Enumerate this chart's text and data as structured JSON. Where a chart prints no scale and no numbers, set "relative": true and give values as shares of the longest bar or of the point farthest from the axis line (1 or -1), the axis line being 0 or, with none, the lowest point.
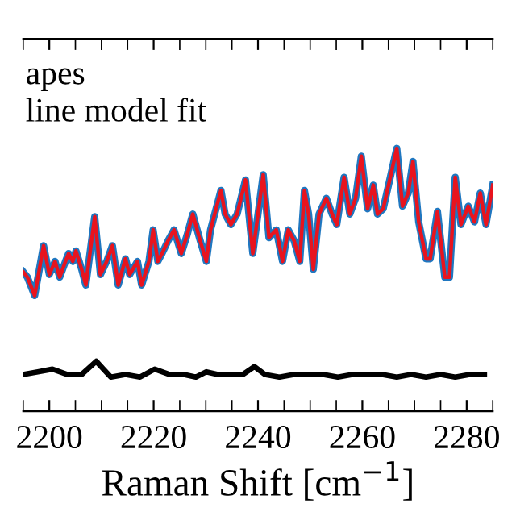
{
  "chart_data": {
    "type": "line",
    "relative": true,
    "xlabel": "Raman Shift [cm$^{−1}$]",
    "annotations": [
      "apes",
      "line model fit"
    ],
    "xlim": [
      2195,
      2285
    ],
    "xticks": [
      {
        "value": 2195,
        "label": null
      },
      2200,
      {
        "value": 2205,
        "label": null
      },
      {
        "value": 2210,
        "label": null
      },
      {
        "value": 2215,
        "label": null
      },
      2220,
      {
        "value": 2225,
        "label": null
      },
      {
        "value": 2230,
        "label": null
      },
      {
        "value": 2235,
        "label": null
      },
      2240,
      {
        "value": 2245,
        "label": null
      },
      {
        "value": 2250,
        "label": null
      },
      {
        "value": 2255,
        "label": null
      },
      2260,
      {
        "value": 2265,
        "label": null
      },
      {
        "value": 2270,
        "label": null
      },
      {
        "value": 2275,
        "label": null
      },
      2280,
      {
        "value": 2285,
        "label": null
      }
    ],
    "grid": false,
    "legend": false,
    "marker": "none",
    "line_style": "solid",
    "series": [
      {
        "color": "#1f77c0",
        "x": [
          2195,
          2195.8,
          2197.2,
          2198.9,
          2200,
          2201.1,
          2202,
          2203.1,
          2203.7,
          2204.5,
          2205.1,
          2206.2,
          2207,
          2208.7,
          2209.8,
          2211,
          2212.1,
          2213.2,
          2214.6,
          2215.4,
          2216.9,
          2217.7,
          2219.1,
          2219.9,
          2220.8,
          2221.6,
          2222.8,
          2223.9,
          2225.3,
          2226.4,
          2227.5,
          2228.9,
          2230.1,
          2230.9,
          2231.7,
          2232.9,
          2233.7,
          2234.8,
          2236,
          2237.6,
          2239,
          2241,
          2242.1,
          2243.5,
          2244.7,
          2245.8,
          2246.9,
          2248,
          2248.9,
          2249.7,
          2250.6,
          2251.7,
          2253.1,
          2254.2,
          2255.1,
          2256.5,
          2257.6,
          2258.7,
          2259.8,
          2261,
          2262.1,
          2262.9,
          2264,
          2266.6,
          2267.7,
          2268.8,
          2269.7,
          2270.8,
          2272.2,
          2273,
          2274.4,
          2275.8,
          2276.7,
          2277.8,
          2278.9,
          2280.3,
          2281.5,
          2282.6,
          2283.7,
          2285
        ],
        "values": [
          0.53,
          0.51,
          0.44,
          0.63,
          0.52,
          0.57,
          0.51,
          0.57,
          0.6,
          0.57,
          0.61,
          0.54,
          0.48,
          0.74,
          0.52,
          0.57,
          0.63,
          0.48,
          0.58,
          0.52,
          0.57,
          0.48,
          0.57,
          0.69,
          0.57,
          0.6,
          0.65,
          0.69,
          0.6,
          0.67,
          0.75,
          0.65,
          0.57,
          0.69,
          0.75,
          0.84,
          0.75,
          0.71,
          0.75,
          0.88,
          0.6,
          0.9,
          0.66,
          0.69,
          0.57,
          0.69,
          0.65,
          0.57,
          0.84,
          0.75,
          0.54,
          0.75,
          0.81,
          0.75,
          0.71,
          0.89,
          0.75,
          0.81,
          0.97,
          0.77,
          0.86,
          0.75,
          0.77,
          1.0,
          0.78,
          0.83,
          0.95,
          0.72,
          0.58,
          0.58,
          0.76,
          0.51,
          0.51,
          0.89,
          0.71,
          0.78,
          0.72,
          0.83,
          0.71,
          0.86
        ]
      },
      {
        "color": "#e8141e",
        "x": [
          2195,
          2195.8,
          2197.2,
          2198.9,
          2200,
          2201.1,
          2202,
          2203.1,
          2203.7,
          2204.5,
          2205.1,
          2206.2,
          2207,
          2208.7,
          2209.8,
          2211,
          2212.1,
          2213.2,
          2214.6,
          2215.4,
          2216.9,
          2217.7,
          2219.1,
          2219.9,
          2220.8,
          2221.6,
          2222.8,
          2223.9,
          2225.3,
          2226.4,
          2227.5,
          2228.9,
          2230.1,
          2230.9,
          2231.7,
          2232.9,
          2233.7,
          2234.8,
          2236,
          2237.6,
          2239,
          2241,
          2242.1,
          2243.5,
          2244.7,
          2245.8,
          2246.9,
          2248,
          2248.9,
          2249.7,
          2250.6,
          2251.7,
          2253.1,
          2254.2,
          2255.1,
          2256.5,
          2257.6,
          2258.7,
          2259.8,
          2261,
          2262.1,
          2262.9,
          2264,
          2266.6,
          2267.7,
          2268.8,
          2269.7,
          2270.8,
          2272.2,
          2273,
          2274.4,
          2275.8,
          2276.7,
          2277.8,
          2278.9,
          2280.3,
          2281.5,
          2282.6,
          2283.7,
          2285
        ],
        "values": [
          0.53,
          0.51,
          0.44,
          0.63,
          0.52,
          0.57,
          0.51,
          0.57,
          0.6,
          0.57,
          0.61,
          0.54,
          0.48,
          0.74,
          0.52,
          0.57,
          0.63,
          0.48,
          0.58,
          0.52,
          0.57,
          0.48,
          0.57,
          0.69,
          0.57,
          0.6,
          0.65,
          0.69,
          0.6,
          0.67,
          0.75,
          0.65,
          0.57,
          0.69,
          0.75,
          0.84,
          0.75,
          0.71,
          0.75,
          0.88,
          0.6,
          0.9,
          0.66,
          0.69,
          0.57,
          0.69,
          0.65,
          0.57,
          0.84,
          0.75,
          0.54,
          0.75,
          0.81,
          0.75,
          0.71,
          0.89,
          0.75,
          0.81,
          0.97,
          0.77,
          0.86,
          0.75,
          0.77,
          1.0,
          0.78,
          0.83,
          0.95,
          0.72,
          0.58,
          0.58,
          0.76,
          0.51,
          0.51,
          0.89,
          0.71,
          0.78,
          0.72,
          0.83,
          0.71,
          0.86
        ]
      },
      {
        "color": "#000000",
        "x": [
          2195,
          2197.8,
          2200.6,
          2203.4,
          2206.2,
          2209,
          2210.4,
          2211.8,
          2214.6,
          2217.4,
          2220.2,
          2223,
          2225.8,
          2228.1,
          2230.1,
          2232.3,
          2234.3,
          2237.1,
          2239.3,
          2241.3,
          2244.1,
          2246.9,
          2249.7,
          2252.5,
          2255.3,
          2258.1,
          2261,
          2263.8,
          2266.6,
          2269.4,
          2272.2,
          2275,
          2277.8,
          2280.6,
          2283.4
        ],
        "values": [
          0.14,
          0.15,
          0.16,
          0.14,
          0.14,
          0.19,
          0.16,
          0.13,
          0.14,
          0.13,
          0.16,
          0.14,
          0.14,
          0.13,
          0.15,
          0.14,
          0.14,
          0.14,
          0.17,
          0.14,
          0.13,
          0.14,
          0.14,
          0.14,
          0.13,
          0.14,
          0.14,
          0.14,
          0.13,
          0.14,
          0.13,
          0.14,
          0.13,
          0.14,
          0.14
        ]
      }
    ]
  }
}
